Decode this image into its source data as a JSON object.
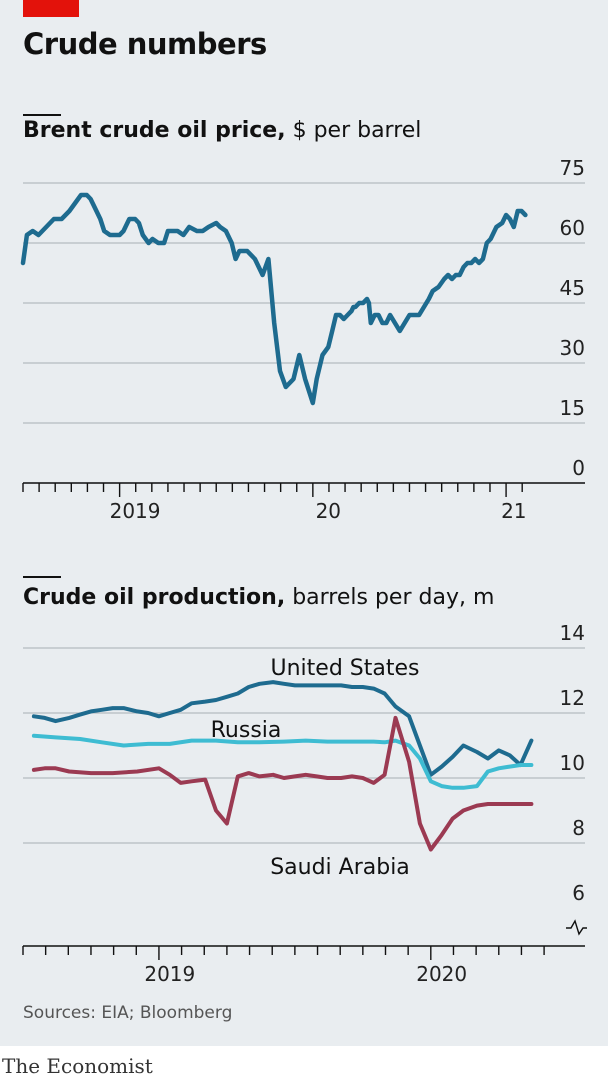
{
  "header": {
    "title": "Crude numbers"
  },
  "chart_data": [
    {
      "type": "line",
      "title": "Brent crude oil price,",
      "subtitle": "$ per barrel",
      "ylim": [
        0,
        75
      ],
      "yticks": [
        0,
        15,
        30,
        45,
        60,
        75
      ],
      "xlim": [
        2018.5,
        2021.16
      ],
      "xtick_labels": [
        {
          "label": "2019",
          "x": 2019.0
        },
        {
          "label": "20",
          "x": 2020.0
        },
        {
          "label": "21",
          "x": 2021.0
        }
      ],
      "grid": true,
      "colors": {
        "line": "#1e6b8f",
        "grid": "#b4bbc0"
      },
      "series": [
        {
          "x": [
            2018.5,
            2018.52,
            2018.55,
            2018.58,
            2018.62,
            2018.66,
            2018.7,
            2018.74,
            2018.77,
            2018.8,
            2018.83,
            2018.85,
            2018.87,
            2018.9,
            2018.92,
            2018.95,
            2018.98,
            2019.0,
            2019.02,
            2019.05,
            2019.08,
            2019.1,
            2019.12,
            2019.15,
            2019.17,
            2019.2,
            2019.23,
            2019.25,
            2019.27,
            2019.3,
            2019.33,
            2019.36,
            2019.4,
            2019.43,
            2019.46,
            2019.5,
            2019.52,
            2019.55,
            2019.58,
            2019.6,
            2019.62,
            2019.66,
            2019.7,
            2019.74,
            2019.77,
            2019.8,
            2019.83,
            2019.86,
            2019.9,
            2019.93,
            2019.96,
            2020.0,
            2020.02,
            2020.05,
            2020.08,
            2020.1,
            2020.12,
            2020.14,
            2020.16,
            2020.18,
            2020.2,
            2020.21,
            2020.22,
            2020.24,
            2020.26,
            2020.28,
            2020.29,
            2020.3,
            2020.32,
            2020.34,
            2020.36,
            2020.38,
            2020.4,
            2020.45,
            2020.5,
            2020.55,
            2020.6,
            2020.62,
            2020.65,
            2020.68,
            2020.7,
            2020.72,
            2020.74,
            2020.76,
            2020.78,
            2020.8,
            2020.82,
            2020.84,
            2020.86,
            2020.88,
            2020.9,
            2020.92,
            2020.95,
            2020.98,
            2021.0,
            2021.02,
            2021.04,
            2021.06,
            2021.08,
            2021.1
          ],
          "y": [
            55,
            62,
            63,
            62,
            64,
            66,
            66,
            68,
            70,
            72,
            72,
            71,
            69,
            66,
            63,
            62,
            62,
            62,
            63,
            66,
            66,
            65,
            62,
            60,
            61,
            60,
            60,
            63,
            63,
            63,
            62,
            64,
            63,
            63,
            64,
            65,
            64,
            63,
            60,
            56,
            58,
            58,
            56,
            52,
            56,
            40,
            28,
            24,
            26,
            32,
            26,
            20,
            26,
            32,
            34,
            38,
            42,
            42,
            41,
            42,
            43,
            44,
            44,
            45,
            45,
            46,
            45,
            40,
            42,
            42,
            40,
            40,
            42,
            38,
            42,
            42,
            46,
            48,
            49,
            51,
            52,
            51,
            52,
            52,
            54,
            55,
            55,
            56,
            55,
            56,
            60,
            61,
            64,
            65,
            67,
            66,
            64,
            68,
            68,
            67
          ]
        }
      ]
    },
    {
      "type": "line",
      "title": "Crude oil production,",
      "subtitle": "barrels per day, m",
      "ylim": [
        6,
        14
      ],
      "yticks": [
        6,
        8,
        10,
        12,
        14
      ],
      "y_axis_break": true,
      "xlim": [
        2018.5,
        2020.42
      ],
      "xtick_labels": [
        {
          "label": "2019",
          "x": 2019.0
        },
        {
          "label": "2020",
          "x": 2020.0
        }
      ],
      "grid": true,
      "colors": {
        "grid": "#b4bbc0"
      },
      "series": [
        {
          "name": "United States",
          "color": "#1e6b8f",
          "x": [
            2018.54,
            2018.58,
            2018.62,
            2018.67,
            2018.71,
            2018.75,
            2018.79,
            2018.83,
            2018.87,
            2018.92,
            2018.96,
            2019.0,
            2019.04,
            2019.08,
            2019.12,
            2019.17,
            2019.21,
            2019.25,
            2019.29,
            2019.33,
            2019.37,
            2019.42,
            2019.46,
            2019.5,
            2019.54,
            2019.58,
            2019.62,
            2019.67,
            2019.71,
            2019.75,
            2019.79,
            2019.83,
            2019.87,
            2019.92,
            2019.96,
            2020.0,
            2020.04,
            2020.08,
            2020.12,
            2020.17,
            2020.21,
            2020.25,
            2020.29,
            2020.33,
            2020.37
          ],
          "y": [
            11.9,
            11.85,
            11.75,
            11.85,
            11.95,
            12.05,
            12.1,
            12.15,
            12.15,
            12.05,
            12.0,
            11.9,
            12.0,
            12.1,
            12.3,
            12.35,
            12.4,
            12.5,
            12.6,
            12.8,
            12.9,
            12.95,
            12.9,
            12.85,
            12.85,
            12.85,
            12.85,
            12.85,
            12.8,
            12.8,
            12.75,
            12.6,
            12.2,
            11.9,
            11.0,
            10.1,
            10.35,
            10.65,
            11.0,
            10.8,
            10.6,
            10.85,
            10.7,
            10.4,
            11.15
          ]
        },
        {
          "name": "Russia",
          "color": "#3ebcd2",
          "x": [
            2018.54,
            2018.62,
            2018.71,
            2018.79,
            2018.87,
            2018.96,
            2019.04,
            2019.12,
            2019.21,
            2019.29,
            2019.37,
            2019.46,
            2019.54,
            2019.62,
            2019.71,
            2019.79,
            2019.83,
            2019.87,
            2019.92,
            2019.96,
            2020.0,
            2020.04,
            2020.08,
            2020.12,
            2020.17,
            2020.21,
            2020.25,
            2020.29,
            2020.33,
            2020.37
          ],
          "y": [
            11.3,
            11.25,
            11.2,
            11.1,
            11.0,
            11.05,
            11.05,
            11.15,
            11.15,
            11.1,
            11.1,
            11.12,
            11.15,
            11.12,
            11.12,
            11.12,
            11.1,
            11.15,
            11.0,
            10.6,
            9.9,
            9.75,
            9.7,
            9.7,
            9.75,
            10.2,
            10.3,
            10.35,
            10.4,
            10.4
          ]
        },
        {
          "name": "Saudi Arabia",
          "color": "#9b3a52",
          "x": [
            2018.54,
            2018.58,
            2018.62,
            2018.67,
            2018.75,
            2018.83,
            2018.92,
            2019.0,
            2019.04,
            2019.08,
            2019.12,
            2019.17,
            2019.21,
            2019.25,
            2019.29,
            2019.33,
            2019.37,
            2019.42,
            2019.46,
            2019.5,
            2019.54,
            2019.58,
            2019.62,
            2019.67,
            2019.71,
            2019.75,
            2019.79,
            2019.83,
            2019.87,
            2019.92,
            2019.96,
            2020.0,
            2020.04,
            2020.08,
            2020.12,
            2020.17,
            2020.21,
            2020.25,
            2020.29,
            2020.33,
            2020.37
          ],
          "y": [
            10.25,
            10.3,
            10.3,
            10.2,
            10.15,
            10.15,
            10.2,
            10.3,
            10.1,
            9.85,
            9.9,
            9.95,
            9.0,
            8.6,
            10.05,
            10.15,
            10.05,
            10.1,
            10.0,
            10.05,
            10.1,
            10.05,
            10.0,
            10.0,
            10.05,
            10.0,
            9.85,
            10.1,
            11.85,
            10.5,
            8.6,
            7.8,
            8.25,
            8.75,
            9.0,
            9.15,
            9.2,
            9.2,
            9.2,
            9.2,
            9.2
          ]
        }
      ]
    }
  ],
  "footer": {
    "source": "Sources: EIA; Bloomberg",
    "brand": "The Economist"
  }
}
